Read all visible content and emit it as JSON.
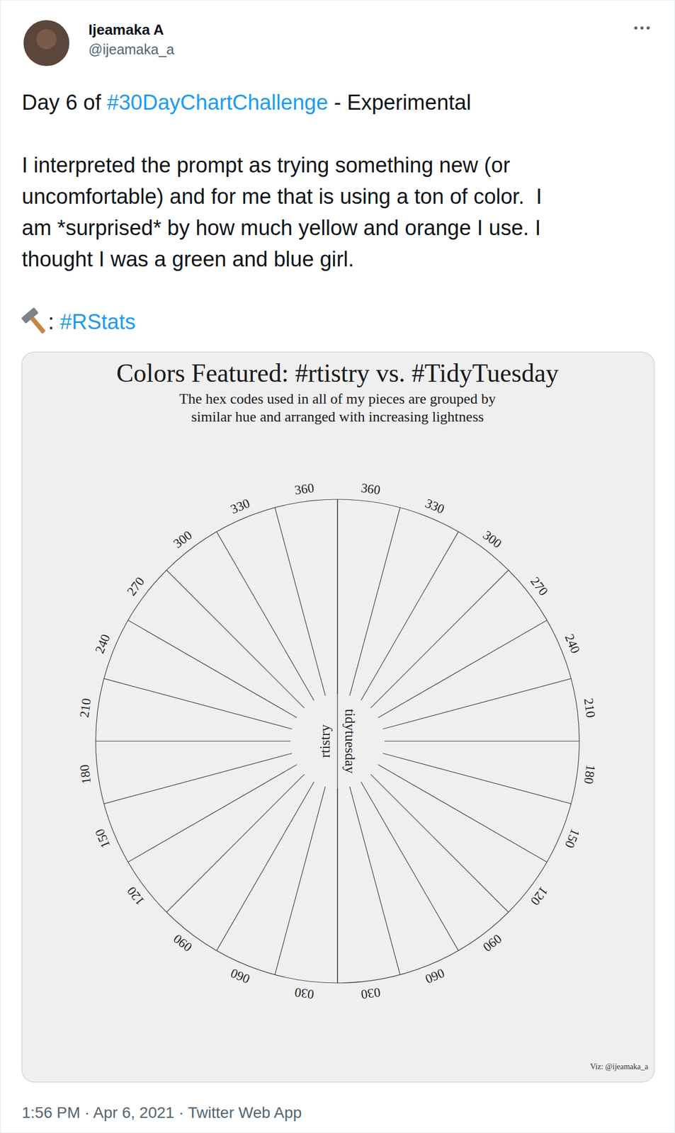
{
  "tweet": {
    "author": "Ijeamaka A",
    "handle": "@ijeamaka_a",
    "paragraphs": [
      [
        [
          "Day 6 of ",
          "#30DayChartChallenge",
          " - Experimental"
        ]
      ],
      [
        [
          "I interpreted the prompt as trying something new (or"
        ],
        [
          "uncomfortable) and for me that is using a ton of color.  I"
        ],
        [
          "am *surprised* by how much yellow and orange I use. I"
        ],
        [
          "thought I was a green and blue girl."
        ]
      ]
    ],
    "tool_line": [
      ": ",
      "#RStats"
    ],
    "timestamp": "1:56 PM · Apr 6, 2021 · Twitter Web App"
  },
  "chart_data": {
    "type": "radial",
    "title": "Colors Featured: #rtistry vs. #TidyTuesday",
    "subtitle": [
      "The hex codes used in all of my pieces are grouped by",
      "similar hue and arranged with increasing lightness"
    ],
    "credit": "Viz: @ijeamaka_a",
    "xlim": [
      0,
      360
    ],
    "xticks": [
      {
        "value": 30,
        "label": "030"
      },
      {
        "value": 60,
        "label": "060"
      },
      {
        "value": 90,
        "label": "090"
      },
      120,
      150,
      180,
      210,
      240,
      270,
      300,
      330,
      360
    ],
    "ylim": [
      0,
      28
    ],
    "tick_labels": "x",
    "series": [
      {
        "name": "rtistry",
        "groups": [
          {
            "hue": [
              0,
              30
            ],
            "colors": [
              "#2b0c0e",
              "#3a1013",
              "#4a1418",
              "#5a181c",
              "#6a1c20",
              "#7a2024",
              "#8a2428",
              "#9a282c",
              "#aa2c30",
              "#b83232",
              "#c43a34",
              "#d04236",
              "#dc4a38",
              "#e85a3a",
              "#ee6a44",
              "#f07a52",
              "#e58a70",
              "#dc9a84",
              "#d6aa98",
              "#d9b9ab",
              "#e0c8bd",
              "#e8d8d0"
            ]
          },
          {
            "hue": [
              30,
              60
            ],
            "colors": [
              "#3a200c",
              "#4e2a10",
              "#623412",
              "#763e14",
              "#8a4816",
              "#9e5218",
              "#b25c1a",
              "#c6661c",
              "#d8701e",
              "#e57a22",
              "#ef862a",
              "#f29436",
              "#f2a040",
              "#f0ac3a",
              "#eeb634",
              "#ecbe3a",
              "#eec44a",
              "#f0ca5c",
              "#f0b06a",
              "#f2bc80",
              "#f0c896",
              "#eed0a8",
              "#eed8b8",
              "#f0dec6",
              "#f2e4d2",
              "#f4eade"
            ]
          },
          {
            "hue": [
              60,
              90
            ],
            "colors": [
              "#3a3410",
              "#5a5016",
              "#8a7a1c",
              "#c8a81e",
              "#e8c22a",
              "#f4d24a",
              "#f6e08a",
              "#f8ecc0",
              "#faf4e0"
            ]
          },
          {
            "hue": [
              90,
              120
            ],
            "colors": [
              "#1e2214",
              "#2c3420",
              "#3c4a2c",
              "#4e6038",
              "#62744a",
              "#7a8a62",
              "#96a07e",
              "#b2b89c",
              "#ccd0bc",
              "#e2e4d8",
              "#f0f0ea",
              "#fafafa"
            ]
          },
          {
            "hue": [
              120,
              150
            ],
            "colors": [
              "#142016",
              "#1c3020",
              "#28422c",
              "#3a5a3e",
              "#56765a"
            ]
          },
          {
            "hue": [
              150,
              180
            ],
            "colors": [
              "#10201a",
              "#183026",
              "#224234",
              "#2f5848"
            ]
          },
          {
            "hue": [
              180,
              210
            ],
            "colors": [
              "#0e1c1c",
              "#142a2a",
              "#1a3a3a",
              "#224a4a",
              "#2c5c5c",
              "#3a6e6e"
            ]
          },
          {
            "hue": [
              210,
              240
            ],
            "colors": [
              "#1c2a38",
              "#2a3c50",
              "#3a5068",
              "#4a6480",
              "#5a7892",
              "#6c8aa2",
              "#809cb2",
              "#98b0c2",
              "#b2c4d2"
            ]
          },
          {
            "hue": [
              240,
              270
            ],
            "colors": [
              "#0c0c1c",
              "#121428",
              "#181c36",
              "#1e2446",
              "#242c56",
              "#2c3468",
              "#343c6e",
              "#3e466e",
              "#4a5070",
              "#565c78",
              "#626882",
              "#70768e",
              "#80869c",
              "#9298aa",
              "#a6aaba",
              "#babecc",
              "#d2d4de"
            ]
          },
          {
            "hue": [
              270,
              300
            ],
            "colors": [
              "#140f1c",
              "#1c1626",
              "#251e30",
              "#30283c",
              "#3c344a",
              "#4a4258",
              "#5a5268"
            ]
          },
          {
            "hue": [
              300,
              330
            ],
            "colors": [
              "#6a3a6e"
            ]
          },
          {
            "hue": [
              330,
              360
            ],
            "colors": [
              "#140a10",
              "#22101a",
              "#321826",
              "#442234",
              "#583044",
              "#6e4256"
            ]
          }
        ]
      },
      {
        "name": "tidytuesday",
        "groups": [
          {
            "hue": [
              0,
              30
            ],
            "colors": [
              "#1e0a0c",
              "#3a0e14",
              "#56121c",
              "#721626",
              "#8e1a30",
              "#a81e38",
              "#c02440",
              "#d42e46",
              "#e23e4e",
              "#e85a5e",
              "#ee7a76",
              "#f29c94",
              "#f6c0b8",
              "#fae4e0"
            ]
          },
          {
            "hue": [
              30,
              60
            ],
            "colors": [
              "#2a1a0a",
              "#4a2e10",
              "#6a4216",
              "#8a561c",
              "#aa6a22",
              "#c67e2a",
              "#dc9232",
              "#e8a03c",
              "#f0ae4a",
              "#f4ba5e",
              "#f6c474",
              "#f8ce8a",
              "#f8d6a0",
              "#fadeb6",
              "#fce8cc"
            ]
          },
          {
            "hue": [
              60,
              90
            ],
            "colors": [
              "#2c2810",
              "#4e4614",
              "#8a7818",
              "#c6a818",
              "#ecc41c",
              "#f6d232",
              "#f8e070",
              "#faeeb0"
            ]
          },
          {
            "hue": [
              90,
              120
            ],
            "colors": [
              "#141810",
              "#20261a",
              "#2e3a22",
              "#3e4e2a",
              "#4e6432",
              "#5e7a3a",
              "#6e8c46",
              "#829a5a",
              "#96a872",
              "#aab48a",
              "#bcc2a2",
              "#ccd0b8",
              "#dcdecc",
              "#eaebe0",
              "#f6f6f2"
            ]
          },
          {
            "hue": [
              120,
              150
            ],
            "colors": [
              "#0e1a10",
              "#142a18",
              "#1c3c22",
              "#264e2e",
              "#32623a",
              "#42764a"
            ]
          },
          {
            "hue": [
              150,
              180
            ],
            "colors": [
              "#0c2818",
              "#124028",
              "#1a5a38",
              "#26744a"
            ]
          },
          {
            "hue": [
              180,
              210
            ],
            "colors": [
              "#0a1414",
              "#102020",
              "#182e2e",
              "#223c3c"
            ]
          },
          {
            "hue": [
              210,
              240
            ],
            "colors": [
              "#2a3a48",
              "#44586a",
              "#62788a",
              "#8498a8",
              "#a6b6c4",
              "#c8d4de"
            ]
          },
          {
            "hue": [
              240,
              270
            ],
            "colors": [
              "#0e1020",
              "#141a34",
              "#1a2448",
              "#202e62",
              "#283a80",
              "#3446a0",
              "#4a5aae",
              "#6a76b4",
              "#8a92bc",
              "#a8aec8",
              "#c4c8d6",
              "#dcdee6"
            ]
          },
          {
            "hue": [
              270,
              300
            ],
            "colors": [
              "#4a3260",
              "#6a4a80"
            ]
          },
          {
            "hue": [
              300,
              330
            ],
            "colors": [
              "#5a3456"
            ]
          }
        ]
      }
    ]
  }
}
